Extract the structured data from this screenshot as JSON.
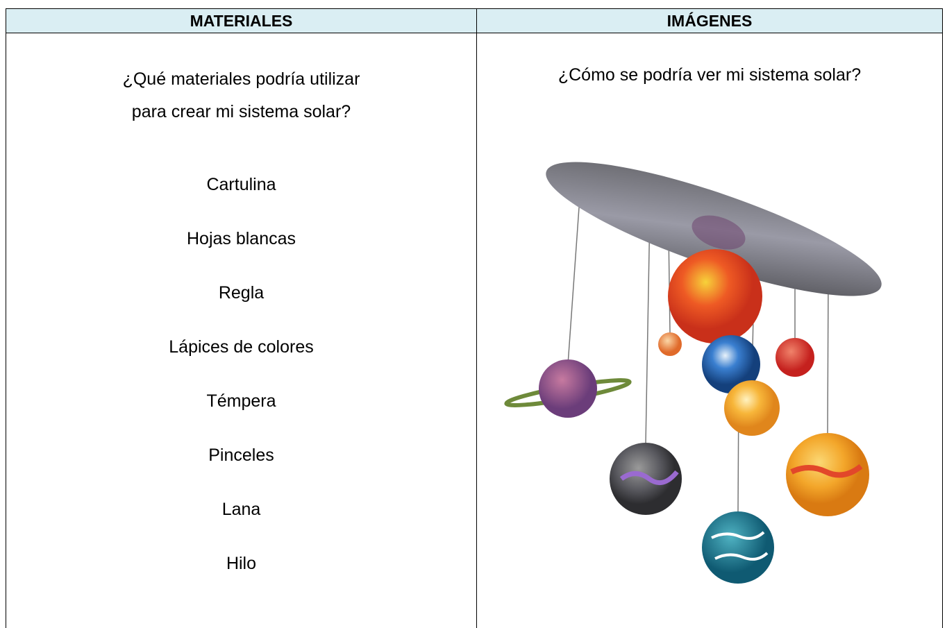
{
  "table": {
    "headers": [
      "MATERIALES",
      "IMÁGENES"
    ],
    "left": {
      "question": [
        "¿Qué materiales podría utilizar",
        "para crear mi sistema solar?"
      ],
      "items": [
        "Cartulina",
        "Hojas blancas",
        "Regla",
        "Lápices de colores",
        "Témpera",
        "Pinceles",
        "Lana",
        "Hilo"
      ]
    },
    "right": {
      "question": "¿Cómo se podría ver mi sistema solar?"
    }
  }
}
